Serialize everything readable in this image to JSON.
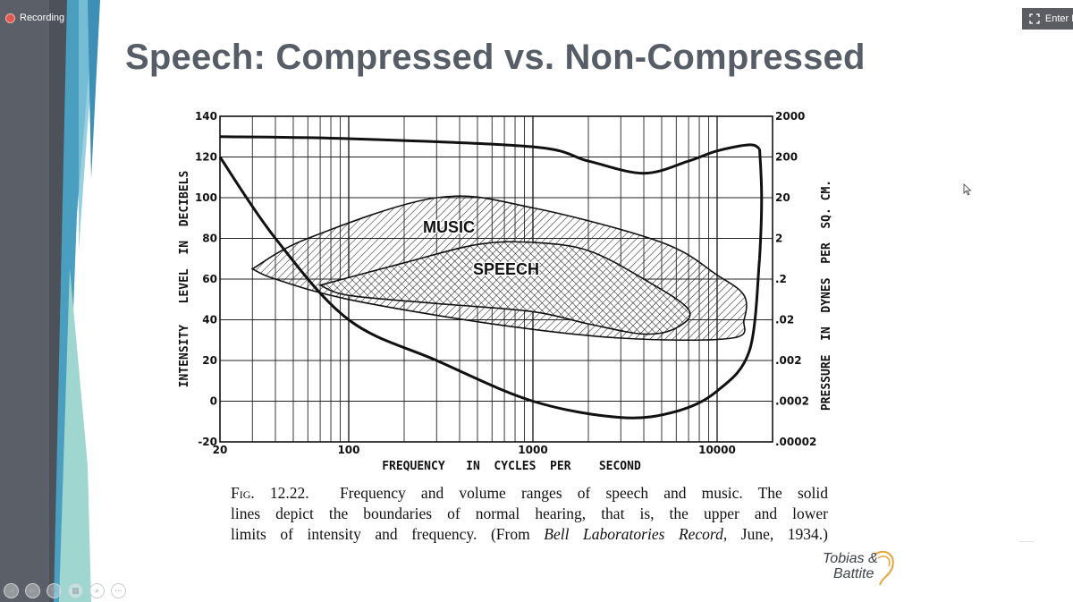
{
  "recording": {
    "label": "Recording"
  },
  "enter_button": {
    "label": "Enter F"
  },
  "slide": {
    "title": "Speech: Compressed vs. Non-Compressed",
    "logo": {
      "line1": "Tobias &",
      "line2": "Battite"
    }
  },
  "figure": {
    "caption_fig": "Fig. 12.22.",
    "caption_line1": "Frequency and volume ranges of speech and music.   The solid",
    "caption_line2": "lines depict the boundaries of normal hearing, that is, the upper and lower",
    "caption_line3_a": "limits of intensity and frequency.    (From ",
    "caption_line3_i": "Bell Laboratories Record",
    "caption_line3_b": ", June, 1934.)"
  },
  "chart_data": {
    "type": "area",
    "xlabel": "FREQUENCY   IN  CYCLES  PER    SECOND",
    "ylabel": "INTENSITY   LEVEL  IN  DECIBELS",
    "y2label": "PRESSURE  IN  DYNES  PER  SQ. CM.",
    "x_scale": "log",
    "xlim": [
      20,
      20000
    ],
    "ylim": [
      -20,
      140
    ],
    "x_ticks": [
      "20",
      "100",
      "1000",
      "10000"
    ],
    "y_ticks": [
      "140",
      "120",
      "100",
      "80",
      "60",
      "40",
      "20",
      "0",
      "-20"
    ],
    "y2_ticks": [
      "2000",
      "200",
      "20",
      "2",
      ".2",
      ".02",
      ".002",
      ".0002",
      ".00002"
    ],
    "grid": true,
    "series": [
      {
        "name": "",
        "values": [
          [
            20,
            130
          ],
          [
            100,
            129
          ],
          [
            1000,
            125
          ],
          [
            2000,
            118
          ],
          [
            4000,
            112
          ],
          [
            7000,
            118
          ],
          [
            10000,
            123
          ],
          [
            15000,
            126
          ],
          [
            17000,
            124
          ]
        ]
      },
      {
        "name": "",
        "values": [
          [
            20,
            120
          ],
          [
            40,
            80
          ],
          [
            100,
            40
          ],
          [
            300,
            20
          ],
          [
            1000,
            0
          ],
          [
            3000,
            -8
          ],
          [
            6000,
            -5
          ],
          [
            10000,
            5
          ],
          [
            15000,
            25
          ],
          [
            17000,
            70
          ]
        ]
      },
      {
        "name": "MUSIC",
        "values": [
          [
            30,
            65
          ],
          [
            60,
            80
          ],
          [
            300,
            100
          ],
          [
            1000,
            95
          ],
          [
            5000,
            78
          ],
          [
            10000,
            62
          ],
          [
            14000,
            52
          ],
          [
            14000,
            40
          ],
          [
            12000,
            31
          ],
          [
            3000,
            31
          ],
          [
            600,
            38
          ],
          [
            100,
            50
          ],
          [
            40,
            60
          ],
          [
            30,
            65
          ]
        ]
      },
      {
        "name": "SPEECH",
        "values": [
          [
            70,
            57
          ],
          [
            200,
            68
          ],
          [
            500,
            77
          ],
          [
            1000,
            78
          ],
          [
            2000,
            74
          ],
          [
            4000,
            60
          ],
          [
            7000,
            45
          ],
          [
            6000,
            36
          ],
          [
            4000,
            33
          ],
          [
            2000,
            38
          ],
          [
            1000,
            44
          ],
          [
            300,
            48
          ],
          [
            100,
            52
          ],
          [
            70,
            57
          ]
        ]
      }
    ]
  }
}
